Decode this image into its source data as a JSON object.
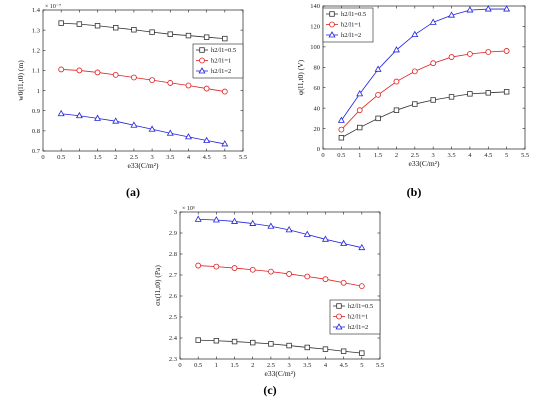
{
  "chart_data": [
    {
      "type": "line",
      "panel_label": "(a)",
      "xlabel": "e33(C/m²)",
      "ylabel": "w0(l1,t0) (m)",
      "y_multiplier": "× 10⁻⁷",
      "xlim": [
        0,
        5.5
      ],
      "ylim": [
        0.7,
        1.4
      ],
      "xticks": [
        "0",
        "0.5",
        "1",
        "1.5",
        "2",
        "2.5",
        "3",
        "3.5",
        "4",
        "4.5",
        "5",
        "5.5"
      ],
      "yticks": [
        "0.7",
        "0.8",
        "0.9",
        "1",
        "1.1",
        "1.2",
        "1.3",
        "1.4"
      ],
      "legend_position": "center-right",
      "x": [
        0.5,
        1,
        1.5,
        2,
        2.5,
        3,
        3.5,
        4,
        4.5,
        5
      ],
      "series": [
        {
          "name": "h2/l1=0.5",
          "marker": "square",
          "color": "#333333",
          "values": [
            1.335,
            1.33,
            1.322,
            1.312,
            1.302,
            1.29,
            1.28,
            1.273,
            1.265,
            1.258
          ]
        },
        {
          "name": "h2/l1=1",
          "marker": "circle",
          "color": "#e02020",
          "values": [
            1.105,
            1.1,
            1.09,
            1.078,
            1.065,
            1.052,
            1.038,
            1.025,
            1.01,
            0.995
          ]
        },
        {
          "name": "h2/l1=2",
          "marker": "triangle",
          "color": "#2020e0",
          "values": [
            0.885,
            0.875,
            0.862,
            0.848,
            0.828,
            0.808,
            0.788,
            0.77,
            0.752,
            0.735
          ]
        }
      ]
    },
    {
      "type": "line",
      "panel_label": "(b)",
      "xlabel": "e33(C/m²)",
      "ylabel": "φ(l1,t0) (V)",
      "xlim": [
        0,
        5.5
      ],
      "ylim": [
        0,
        140
      ],
      "xticks": [
        "0",
        "0.5",
        "1",
        "1.5",
        "2",
        "2.5",
        "3",
        "3.5",
        "4",
        "4.5",
        "5",
        "5.5"
      ],
      "yticks": [
        "0",
        "20",
        "40",
        "60",
        "80",
        "100",
        "120",
        "140"
      ],
      "legend_position": "top-left",
      "x": [
        0.5,
        1,
        1.5,
        2,
        2.5,
        3,
        3.5,
        4,
        4.5,
        5
      ],
      "series": [
        {
          "name": "h2/l1=0.5",
          "marker": "square",
          "color": "#333333",
          "values": [
            11,
            21,
            30,
            38,
            44,
            48,
            51,
            54,
            55,
            56
          ]
        },
        {
          "name": "h2/l1=1",
          "marker": "circle",
          "color": "#e02020",
          "values": [
            19,
            38,
            53,
            66,
            76,
            84,
            90,
            93,
            95,
            96
          ]
        },
        {
          "name": "h2/l1=2",
          "marker": "triangle",
          "color": "#2020e0",
          "values": [
            28,
            54,
            78,
            97,
            112,
            124,
            131,
            136,
            137,
            137
          ]
        }
      ]
    },
    {
      "type": "line",
      "panel_label": "(c)",
      "xlabel": "e33(C/m²)",
      "ylabel": "σx(l1,t0) (Pa)",
      "y_multiplier": "× 10⁵",
      "xlim": [
        0,
        5.5
      ],
      "ylim": [
        2.3,
        3
      ],
      "xticks": [
        "0",
        "0.5",
        "1",
        "1.5",
        "2",
        "2.5",
        "3",
        "3.5",
        "4",
        "4.5",
        "5",
        "5.5"
      ],
      "yticks": [
        "2.3",
        "2.4",
        "2.5",
        "2.6",
        "2.7",
        "2.8",
        "2.9",
        "3"
      ],
      "legend_position": "bottom-right",
      "x": [
        0.5,
        1,
        1.5,
        2,
        2.5,
        3,
        3.5,
        4,
        4.5,
        5
      ],
      "series": [
        {
          "name": "h2/l1=0.5",
          "marker": "square",
          "color": "#333333",
          "values": [
            2.39,
            2.387,
            2.383,
            2.378,
            2.372,
            2.364,
            2.355,
            2.347,
            2.337,
            2.328
          ]
        },
        {
          "name": "h2/l1=1",
          "marker": "circle",
          "color": "#e02020",
          "values": [
            2.745,
            2.74,
            2.733,
            2.725,
            2.716,
            2.705,
            2.693,
            2.68,
            2.663,
            2.647
          ]
        },
        {
          "name": "h2/l1=2",
          "marker": "triangle",
          "color": "#2020e0",
          "values": [
            2.965,
            2.962,
            2.955,
            2.945,
            2.932,
            2.915,
            2.893,
            2.87,
            2.85,
            2.83
          ]
        }
      ]
    }
  ]
}
